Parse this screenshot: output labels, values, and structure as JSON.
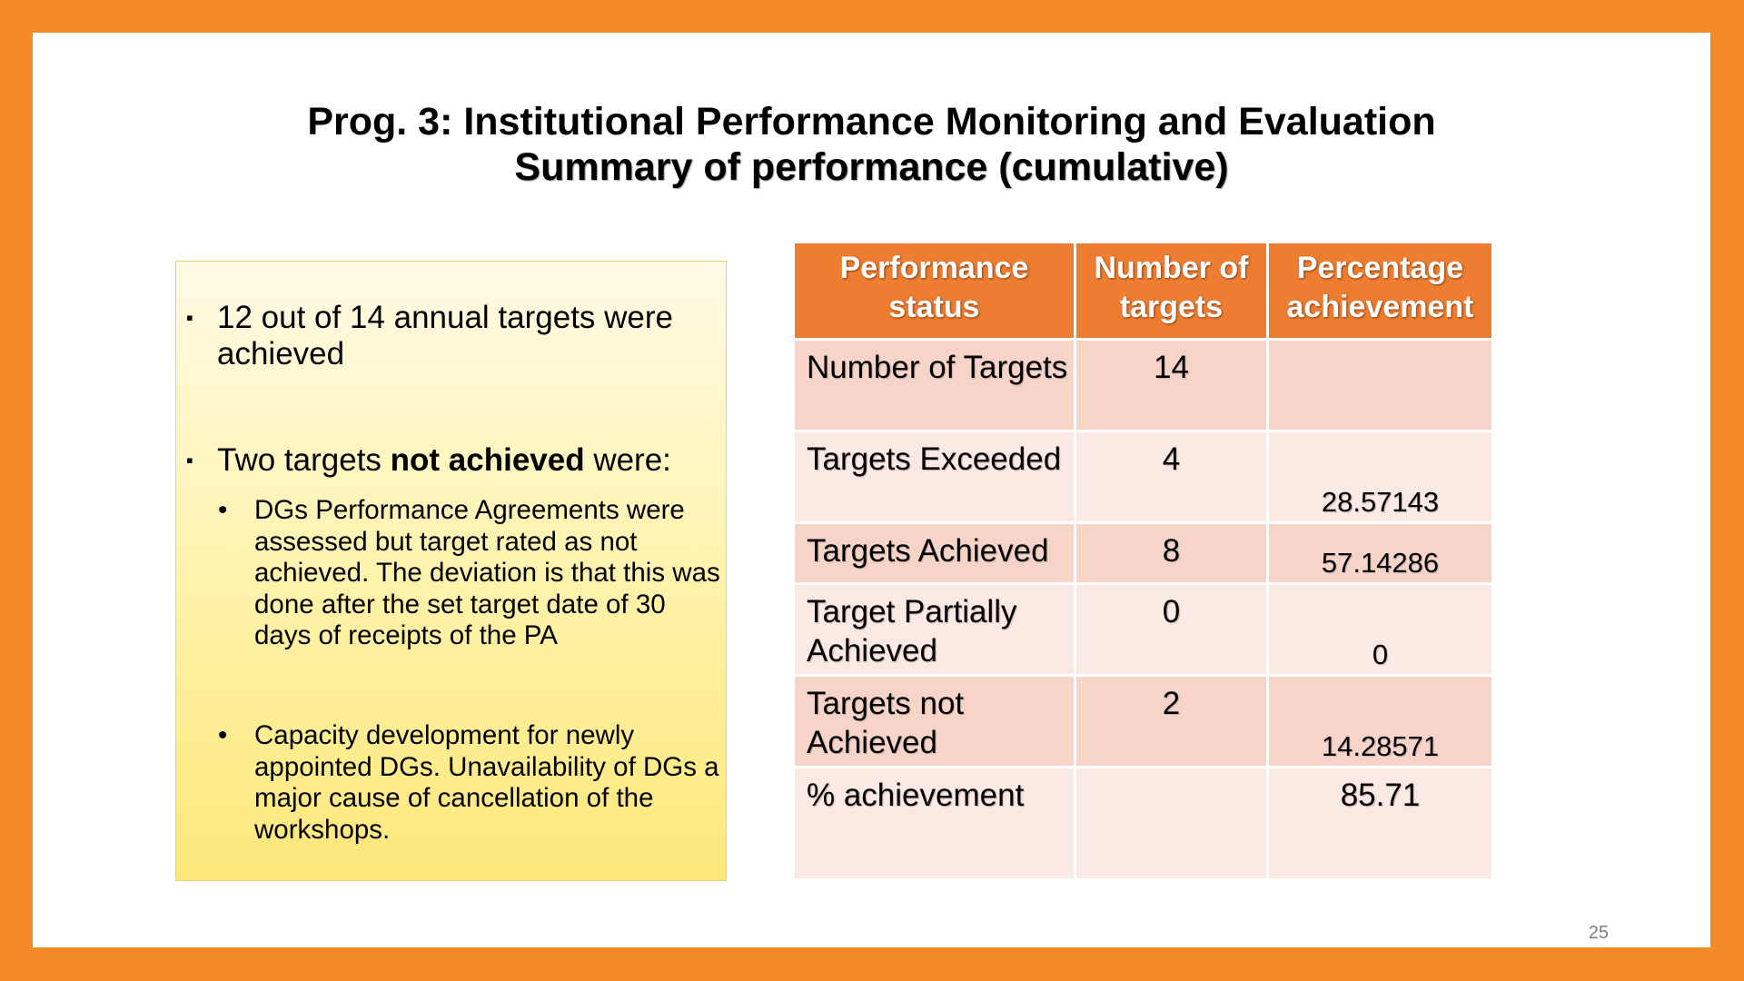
{
  "title": {
    "line1": "Prog. 3: Institutional Performance Monitoring and Evaluation",
    "line2": "Summary of performance (cumulative)"
  },
  "summary": {
    "bullet1": "12 out of 14 annual targets were achieved",
    "bullet2_prefix": "Two targets ",
    "bullet2_bold": "not achieved",
    "bullet2_suffix": " were:",
    "sub1": "DGs Performance Agreements were assessed but target rated as not achieved. The deviation is that this was done after the set target date of 30 days of receipts of the PA",
    "sub2": "Capacity development for newly appointed DGs. Unavailability of DGs a major cause of cancellation of the workshops."
  },
  "table": {
    "headers": [
      "Performance status",
      "Number of targets",
      "Percentage achievement"
    ],
    "rows": [
      {
        "status": "Number of Targets",
        "count": "14",
        "percent": ""
      },
      {
        "status": "Targets Exceeded",
        "count": "4",
        "percent": "28.57143"
      },
      {
        "status": "Targets Achieved",
        "count": "8",
        "percent": "57.14286"
      },
      {
        "status": "Target Partially Achieved",
        "count": "0",
        "percent": "0"
      },
      {
        "status": "Targets not Achieved",
        "count": "2",
        "percent": "14.28571"
      },
      {
        "status": "% achievement",
        "count": "",
        "percent": "85.71"
      }
    ]
  },
  "page_number": "25",
  "colors": {
    "frame": "#f28a26",
    "header": "#ed7d31",
    "row_dark": "#f8d4c8",
    "row_light": "#fbe9e4",
    "textbox_top": "#fffbe6",
    "textbox_bottom": "#fde77a"
  }
}
